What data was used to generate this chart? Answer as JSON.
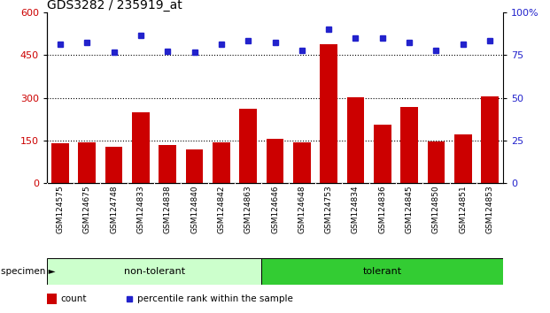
{
  "title": "GDS3282 / 235919_at",
  "categories": [
    "GSM124575",
    "GSM124675",
    "GSM124748",
    "GSM124833",
    "GSM124838",
    "GSM124840",
    "GSM124842",
    "GSM124863",
    "GSM124646",
    "GSM124648",
    "GSM124753",
    "GSM124834",
    "GSM124836",
    "GSM124845",
    "GSM124850",
    "GSM124851",
    "GSM124853"
  ],
  "bar_values": [
    140,
    143,
    128,
    248,
    133,
    118,
    143,
    260,
    155,
    143,
    490,
    302,
    205,
    268,
    148,
    170,
    305
  ],
  "dot_values": [
    490,
    495,
    460,
    520,
    465,
    460,
    490,
    500,
    495,
    468,
    540,
    510,
    510,
    495,
    468,
    490,
    500
  ],
  "non_tolerant_count": 8,
  "tolerant_count": 9,
  "bar_color": "#cc0000",
  "dot_color": "#2222cc",
  "left_ylim": [
    0,
    600
  ],
  "right_ylim": [
    0,
    100
  ],
  "left_yticks": [
    0,
    150,
    300,
    450,
    600
  ],
  "right_yticks": [
    0,
    25,
    50,
    75,
    100
  ],
  "right_yticklabels": [
    "0",
    "25",
    "50",
    "75",
    "100%"
  ],
  "grid_values": [
    150,
    300,
    450
  ],
  "non_tolerant_label": "non-tolerant",
  "tolerant_label": "tolerant",
  "specimen_label": "specimen",
  "legend_bar_label": "count",
  "legend_dot_label": "percentile rank within the sample",
  "non_tolerant_color": "#ccffcc",
  "tolerant_color": "#33cc33",
  "xtick_bg_color": "#d8d8d8",
  "bg_color": "#ffffff",
  "tick_label_color_left": "#cc0000",
  "tick_label_color_right": "#2222cc",
  "title_fontsize": 10,
  "tick_fontsize": 8,
  "xtick_fontsize": 6.5
}
